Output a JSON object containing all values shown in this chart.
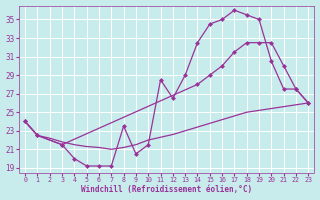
{
  "xlabel": "Windchill (Refroidissement éolien,°C)",
  "background_color": "#c8ecec",
  "line_color": "#993399",
  "grid_color": "#ffffff",
  "xlim": [
    -0.5,
    23.5
  ],
  "ylim": [
    18.5,
    36.5
  ],
  "yticks": [
    19,
    21,
    23,
    25,
    27,
    29,
    31,
    33,
    35
  ],
  "xticks": [
    0,
    1,
    2,
    3,
    4,
    5,
    6,
    7,
    8,
    9,
    10,
    11,
    12,
    13,
    14,
    15,
    16,
    17,
    18,
    19,
    20,
    21,
    22,
    23
  ],
  "line1_x": [
    0,
    1,
    3,
    4,
    5,
    6,
    7,
    8,
    9,
    10,
    11,
    12,
    13,
    14,
    15,
    16,
    17,
    18,
    19,
    20,
    21,
    22,
    23
  ],
  "line1_y": [
    24.0,
    22.5,
    21.5,
    20.0,
    19.2,
    19.2,
    19.2,
    23.5,
    20.5,
    21.5,
    28.5,
    26.5,
    29.0,
    32.5,
    34.5,
    35.0,
    36.0,
    35.5,
    35.0,
    30.5,
    27.5,
    27.5,
    26.0
  ],
  "line2_x": [
    0,
    1,
    3,
    14,
    15,
    16,
    17,
    18,
    19,
    20,
    21,
    22,
    23
  ],
  "line2_y": [
    24.0,
    22.5,
    21.5,
    28.0,
    29.0,
    30.0,
    31.5,
    32.5,
    32.5,
    32.5,
    30.0,
    27.5,
    26.0
  ],
  "line3_x": [
    0,
    1,
    2,
    3,
    4,
    5,
    6,
    7,
    8,
    9,
    10,
    11,
    12,
    13,
    14,
    15,
    16,
    17,
    18,
    19,
    20,
    21,
    22,
    23
  ],
  "line3_y": [
    24.0,
    22.5,
    22.2,
    21.8,
    21.5,
    21.3,
    21.2,
    21.0,
    21.2,
    21.5,
    22.0,
    22.3,
    22.6,
    23.0,
    23.4,
    23.8,
    24.2,
    24.6,
    25.0,
    25.2,
    25.4,
    25.6,
    25.8,
    26.0
  ]
}
